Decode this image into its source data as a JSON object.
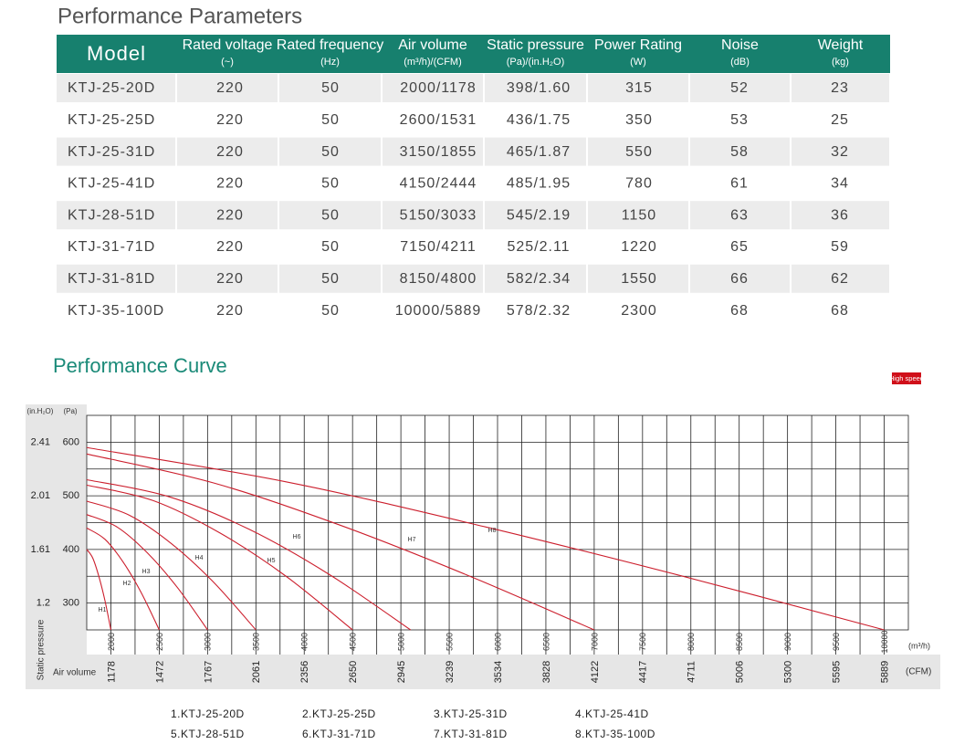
{
  "header": {
    "title": "Performance Parameters"
  },
  "table": {
    "columns": [
      {
        "name": "Model"
      },
      {
        "name": "Rated voltage",
        "unit": "(~)"
      },
      {
        "name": "Rated frequency",
        "unit": "(Hz)"
      },
      {
        "name": "Air volume",
        "unit": "(m³/h)/(CFM)"
      },
      {
        "name": "Static pressure",
        "unit": "(Pa)/(in.H₂O)"
      },
      {
        "name": "Power Rating",
        "unit": "(W)"
      },
      {
        "name": "Noise",
        "unit": "(dB)"
      },
      {
        "name": "Weight",
        "unit": "(kg)"
      }
    ],
    "rows": [
      [
        "KTJ-25-20D",
        220,
        50,
        "2000/1178",
        "398/1.60",
        315,
        52,
        23
      ],
      [
        "KTJ-25-25D",
        220,
        50,
        "2600/1531",
        "436/1.75",
        350,
        53,
        25
      ],
      [
        "KTJ-25-31D",
        220,
        50,
        "3150/1855",
        "465/1.87",
        550,
        58,
        32
      ],
      [
        "KTJ-25-41D",
        220,
        50,
        "4150/2444",
        "485/1.95",
        780,
        61,
        34
      ],
      [
        "KTJ-28-51D",
        220,
        50,
        "5150/3033",
        "545/2.19",
        1150,
        63,
        36
      ],
      [
        "KTJ-31-71D",
        220,
        50,
        "7150/4211",
        "525/2.11",
        1220,
        65,
        59
      ],
      [
        "KTJ-31-81D",
        220,
        50,
        "8150/4800",
        "582/2.34",
        1550,
        66,
        62
      ],
      [
        "KTJ-35-100D",
        220,
        50,
        "10000/5889",
        "578/2.32",
        2300,
        68,
        68
      ]
    ]
  },
  "chart_data": {
    "type": "line",
    "title": "Performance Curve",
    "badge": "High speed",
    "y_label": "Static pressure",
    "x_label": "Air volume",
    "x_unit": "(m³/h)",
    "x2_unit": "(CFM)",
    "y_unit": "(Pa)",
    "y2_unit": "(in.H₂O)",
    "xlim": [
      1750,
      10250
    ],
    "xticks": [
      2000,
      2500,
      3000,
      3500,
      4000,
      4500,
      5000,
      5500,
      6000,
      6500,
      7000,
      7500,
      8000,
      8500,
      9000,
      9500,
      10000
    ],
    "x2ticks": [
      1178,
      1472,
      1767,
      2061,
      2356,
      2650,
      2945,
      3239,
      3534,
      3828,
      4122,
      4417,
      4711,
      5006,
      5300,
      5595,
      5889
    ],
    "ylim": [
      250,
      650
    ],
    "yticks": [
      300,
      400,
      500,
      600
    ],
    "y2ticks": [
      1.2,
      1.61,
      2.01,
      2.41
    ],
    "grid": true,
    "series": [
      {
        "name": "1.KTJ-25-20D",
        "label": "H1",
        "color": "#cc1f2d",
        "x": [
          1750,
          1812,
          1875,
          1938,
          2000
        ],
        "values": [
          400,
          384,
          350,
          305,
          250
        ]
      },
      {
        "name": "2.KTJ-25-25D",
        "label": "H2",
        "color": "#cc1f2d",
        "x": [
          1750,
          1938,
          2125,
          2312,
          2500
        ],
        "values": [
          440,
          419,
          377,
          320,
          250
        ]
      },
      {
        "name": "3.KTJ-25-31D",
        "label": "H3",
        "color": "#cc1f2d",
        "x": [
          1750,
          2062,
          2375,
          2688,
          3000
        ],
        "values": [
          465,
          442,
          394,
          329,
          250
        ]
      },
      {
        "name": "4.KTJ-25-41D",
        "label": "H4",
        "color": "#cc1f2d",
        "x": [
          1750,
          2188,
          2625,
          3062,
          3500
        ],
        "values": [
          490,
          464,
          411,
          339,
          250
        ]
      },
      {
        "name": "5.KTJ-28-51D",
        "label": "H5",
        "color": "#cc1f2d",
        "x": [
          1750,
          2438,
          3125,
          3812,
          4500
        ],
        "values": [
          520,
          491,
          431,
          350,
          250
        ]
      },
      {
        "name": "6.KTJ-31-71D",
        "label": "H6",
        "color": "#cc1f2d",
        "x": [
          1750,
          2588,
          3425,
          4262,
          5100
        ],
        "values": [
          530,
          499,
          438,
          353,
          250
        ]
      },
      {
        "name": "7.KTJ-31-81D",
        "label": "H7",
        "color": "#cc1f2d",
        "x": [
          1750,
          3062,
          4375,
          5688,
          7000
        ],
        "values": [
          578,
          524,
          445,
          352,
          250
        ]
      },
      {
        "name": "8.KTJ-35-100D",
        "label": "H8",
        "color": "#cc1f2d",
        "x": [
          1750,
          3812,
          5875,
          7938,
          10000
        ],
        "values": [
          590,
          526,
          442,
          349,
          250
        ]
      }
    ]
  }
}
